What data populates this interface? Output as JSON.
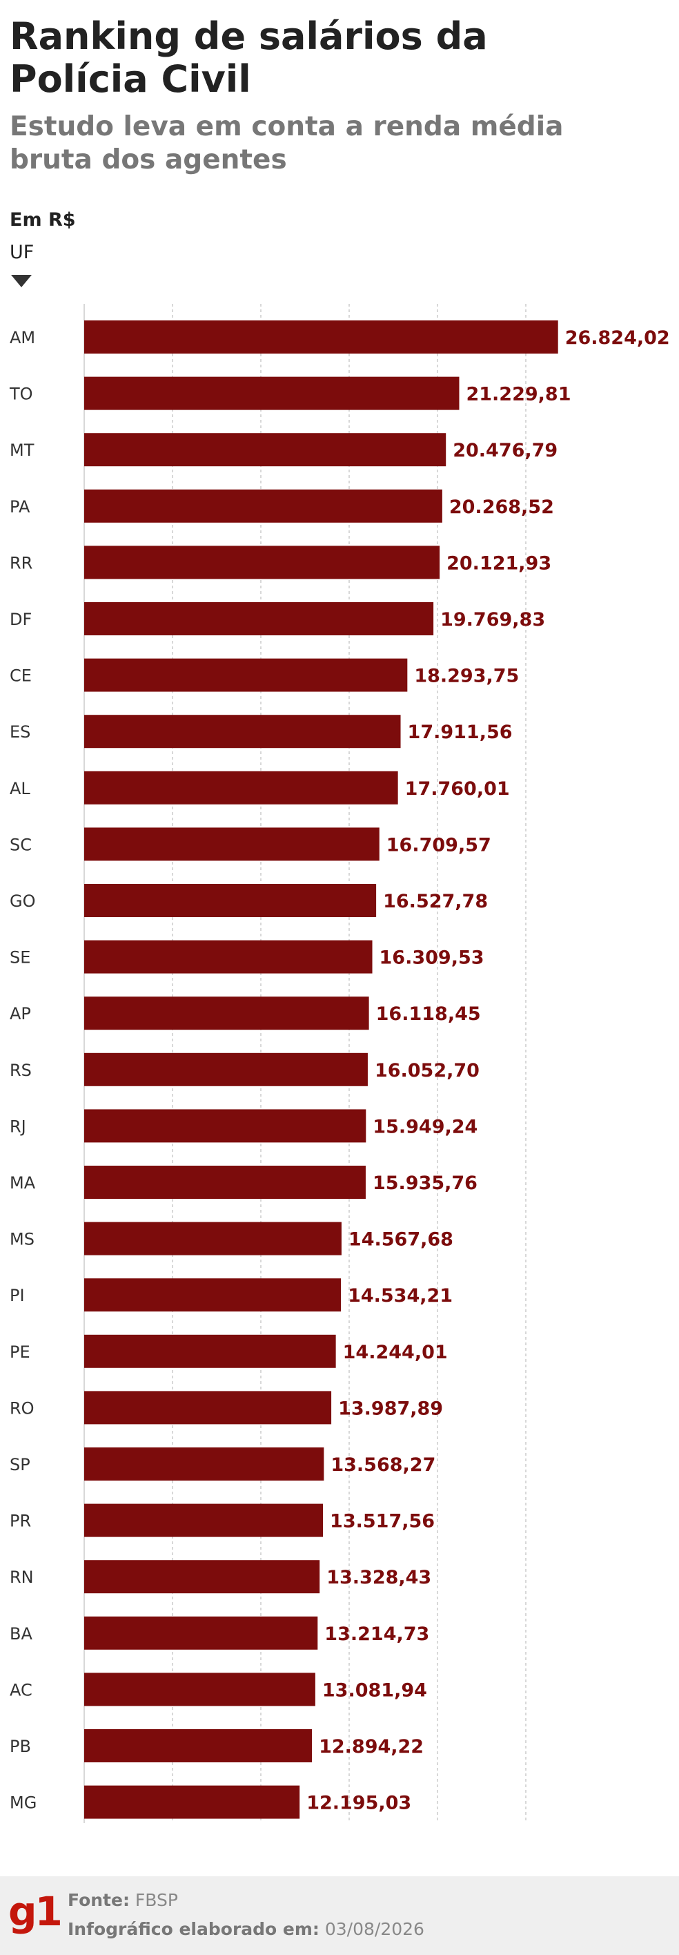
{
  "header": {
    "title": "Ranking de salários da Polícia Civil",
    "subtitle": "Estudo leva em conta a renda média bruta dos agentes",
    "unit": "Em R$",
    "axis_label": "UF"
  },
  "chart_data": {
    "type": "bar",
    "orientation": "horizontal",
    "categories": [
      "AM",
      "TO",
      "MT",
      "PA",
      "RR",
      "DF",
      "CE",
      "ES",
      "AL",
      "SC",
      "GO",
      "SE",
      "AP",
      "RS",
      "RJ",
      "MA",
      "MS",
      "PI",
      "PE",
      "RO",
      "SP",
      "PR",
      "RN",
      "BA",
      "AC",
      "PB",
      "MG"
    ],
    "values": [
      26824.02,
      21229.81,
      20476.79,
      20268.52,
      20121.93,
      19769.83,
      18293.75,
      17911.56,
      17760.01,
      16709.57,
      16527.78,
      16309.53,
      16118.45,
      16052.7,
      15949.24,
      15935.76,
      14567.68,
      14534.21,
      14244.01,
      13987.89,
      13568.27,
      13517.56,
      13328.43,
      13214.73,
      13081.94,
      12894.22,
      12195.03
    ],
    "labels": [
      "26.824,02",
      "21.229,81",
      "20.476,79",
      "20.268,52",
      "20.121,93",
      "19.769,83",
      "18.293,75",
      "17.911,56",
      "17.760,01",
      "16.709,57",
      "16.527,78",
      "16.309,53",
      "16.118,45",
      "16.052,70",
      "15.949,24",
      "15.935,76",
      "14.567,68",
      "14.534,21",
      "14.244,01",
      "13.987,89",
      "13.568,27",
      "13.517,56",
      "13.328,43",
      "13.214,73",
      "13.081,94",
      "12.894,22",
      "12.195,03"
    ],
    "xlim": [
      0,
      30000
    ],
    "grid": true,
    "bar_color": "#7c0c0c",
    "label_color": "#7c0c0c"
  },
  "footer": {
    "logo": "g1",
    "source_label": "Fonte:",
    "source_value": "FBSP",
    "date_label": "Infográfico elaborado em:",
    "date_value": "03/08/2026"
  }
}
